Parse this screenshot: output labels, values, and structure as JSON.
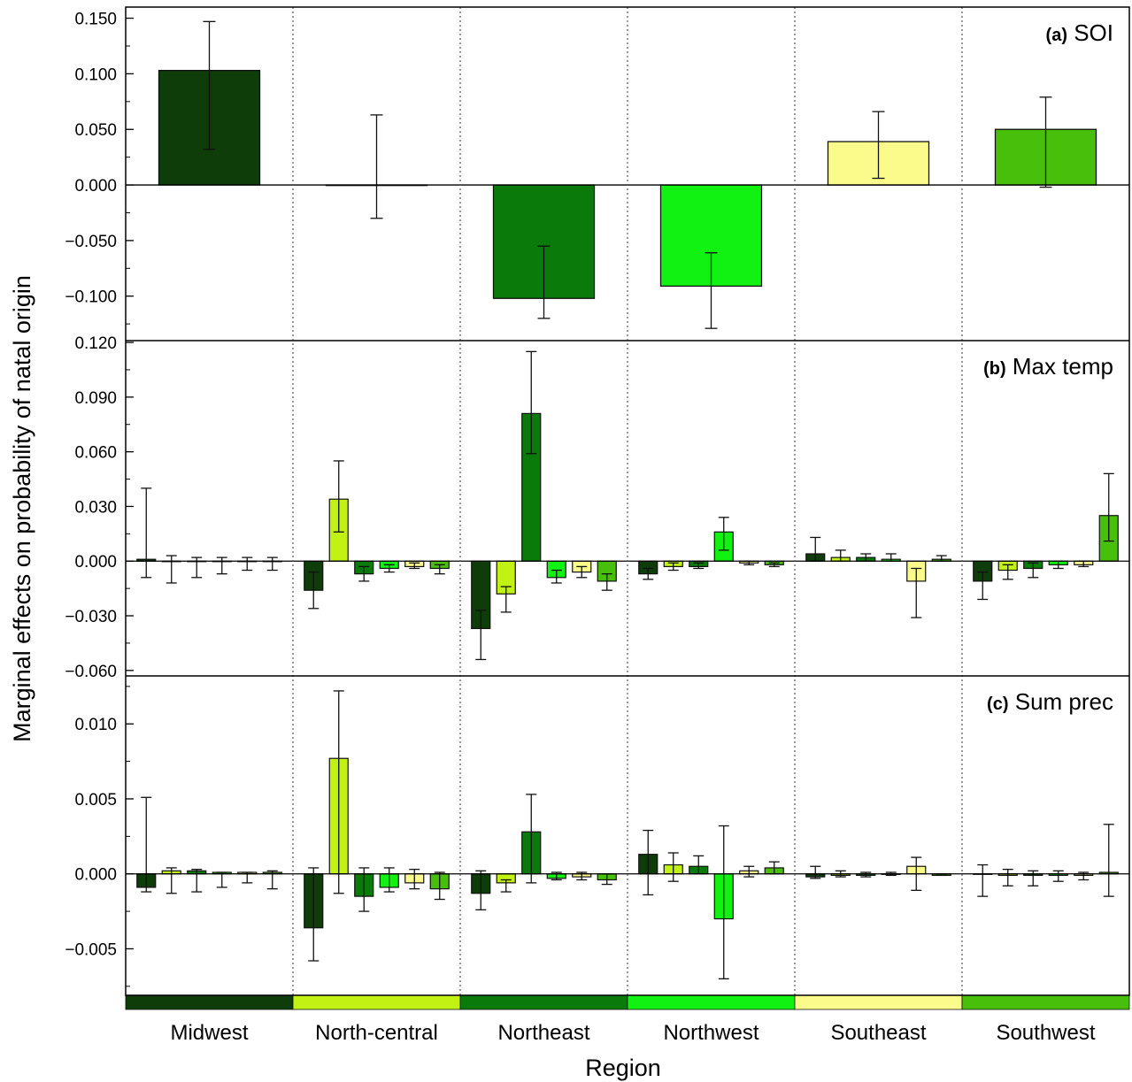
{
  "chart_data": {
    "type": "bar",
    "xlabel": "Region",
    "ylabel": "Marginal effects on probability of natal origin",
    "regions": [
      "Midwest",
      "North-central",
      "Northeast",
      "Northwest",
      "Southeast",
      "Southwest"
    ],
    "region_colors": [
      "#0e3d0a",
      "#c2f213",
      "#0a7a0a",
      "#12f212",
      "#fbfb8c",
      "#48bf0b"
    ],
    "grid": false,
    "error_bars": true,
    "panels": [
      {
        "letter": "(a)",
        "name": "SOI",
        "ylim": [
          -0.14,
          0.16
        ],
        "yticks": [
          0.15,
          0.1,
          0.05,
          0.0,
          -0.05,
          -0.1
        ],
        "ytick_labels": [
          "0.150",
          "0.100",
          "0.050",
          "0.000",
          "−0.050",
          "−0.100"
        ],
        "values": [
          0.103,
          0.0,
          -0.102,
          -0.091,
          0.039,
          0.05
        ],
        "err_low": [
          0.032,
          -0.03,
          -0.12,
          -0.129,
          0.006,
          -0.002
        ],
        "err_high": [
          0.147,
          0.063,
          -0.055,
          -0.061,
          0.066,
          0.079
        ]
      },
      {
        "letter": "(b)",
        "name": "Max temp",
        "ylim": [
          -0.063,
          0.121
        ],
        "yticks": [
          0.12,
          0.09,
          0.06,
          0.03,
          0.0,
          -0.03,
          -0.06
        ],
        "ytick_labels": [
          "0.120",
          "0.090",
          "0.060",
          "0.030",
          "0.000",
          "−0.030",
          "−0.060"
        ],
        "groups": [
          {
            "values": [
              0.001,
              0.0,
              0.0,
              0.0,
              0.0,
              0.0
            ],
            "err_low": [
              -0.009,
              -0.012,
              -0.009,
              -0.007,
              -0.005,
              -0.005
            ],
            "err_high": [
              0.04,
              0.003,
              0.002,
              0.002,
              0.002,
              0.002
            ]
          },
          {
            "values": [
              -0.016,
              0.034,
              -0.007,
              -0.004,
              -0.003,
              -0.004
            ],
            "err_low": [
              -0.026,
              0.016,
              -0.011,
              -0.006,
              -0.004,
              -0.007
            ],
            "err_high": [
              -0.006,
              0.055,
              -0.003,
              -0.002,
              -0.001,
              -0.002
            ]
          },
          {
            "values": [
              -0.037,
              -0.018,
              0.081,
              -0.009,
              -0.006,
              -0.011
            ],
            "err_low": [
              -0.054,
              -0.028,
              0.059,
              -0.012,
              -0.009,
              -0.016
            ],
            "err_high": [
              -0.027,
              -0.014,
              0.115,
              -0.005,
              -0.003,
              -0.007
            ]
          },
          {
            "values": [
              -0.007,
              -0.003,
              -0.003,
              0.016,
              -0.001,
              -0.002
            ],
            "err_low": [
              -0.01,
              -0.005,
              -0.004,
              0.006,
              -0.002,
              -0.003
            ],
            "err_high": [
              -0.004,
              -0.001,
              -0.001,
              0.024,
              0.0,
              -0.001
            ]
          },
          {
            "values": [
              0.004,
              0.002,
              0.002,
              0.001,
              -0.011,
              0.001
            ],
            "err_low": [
              0.0,
              0.0,
              0.0,
              0.0,
              -0.031,
              0.0
            ],
            "err_high": [
              0.013,
              0.006,
              0.004,
              0.004,
              -0.004,
              0.003
            ]
          },
          {
            "values": [
              -0.011,
              -0.005,
              -0.004,
              -0.002,
              -0.002,
              0.025
            ],
            "err_low": [
              -0.021,
              -0.01,
              -0.009,
              -0.004,
              -0.003,
              0.011
            ],
            "err_high": [
              -0.006,
              -0.002,
              -0.001,
              0.0,
              0.0,
              0.048
            ]
          }
        ]
      },
      {
        "letter": "(c)",
        "name": "Sum prec",
        "ylim": [
          -0.0081,
          0.0132
        ],
        "yticks": [
          0.01,
          0.005,
          0.0,
          -0.005
        ],
        "ytick_labels": [
          "0.010",
          "0.005",
          "0.000",
          "−0.005"
        ],
        "groups": [
          {
            "values": [
              -0.0009,
              0.0002,
              0.0002,
              0.0001,
              0.0001,
              0.0001
            ],
            "err_low": [
              -0.0012,
              -0.0013,
              -0.0012,
              -0.0009,
              -0.0006,
              -0.001
            ],
            "err_high": [
              0.0051,
              0.0004,
              0.0003,
              0.0001,
              0.0001,
              0.0002
            ]
          },
          {
            "values": [
              -0.0036,
              0.0077,
              -0.0015,
              -0.0009,
              -0.0006,
              -0.001
            ],
            "err_low": [
              -0.0058,
              -0.0013,
              -0.0025,
              -0.0012,
              -0.001,
              -0.0017
            ],
            "err_high": [
              0.0004,
              0.0122,
              0.0004,
              0.0004,
              0.0003,
              0.0001
            ]
          },
          {
            "values": [
              -0.0013,
              -0.0006,
              0.0028,
              -0.0003,
              -0.0002,
              -0.0004
            ],
            "err_low": [
              -0.0024,
              -0.0012,
              -0.0006,
              -0.0004,
              -0.0004,
              -0.0007
            ],
            "err_high": [
              0.0002,
              -0.0004,
              0.0053,
              0.0001,
              0.0001,
              0.0
            ]
          },
          {
            "values": [
              0.0013,
              0.0006,
              0.0005,
              -0.003,
              0.0002,
              0.0004
            ],
            "err_low": [
              -0.0014,
              -0.0005,
              0.0,
              -0.007,
              -0.0002,
              0.0
            ],
            "err_high": [
              0.0029,
              0.0014,
              0.0012,
              0.0032,
              0.0005,
              0.0008
            ]
          },
          {
            "values": [
              -0.0002,
              -0.0001,
              -0.0001,
              0.0,
              0.0005,
              -0.0001
            ],
            "err_low": [
              -0.0003,
              -0.0002,
              -0.0002,
              -0.0001,
              -0.0011,
              -0.0001
            ],
            "err_high": [
              0.0005,
              0.0002,
              0.0001,
              0.0001,
              0.0011,
              0.0
            ]
          },
          {
            "values": [
              0.0,
              -0.0001,
              -0.0001,
              -0.0001,
              -0.0001,
              0.0001
            ],
            "err_low": [
              -0.0015,
              -0.0008,
              -0.0008,
              -0.0005,
              -0.0004,
              -0.0015
            ],
            "err_high": [
              0.0006,
              0.0003,
              0.0002,
              0.0002,
              0.0001,
              0.0033
            ]
          }
        ]
      }
    ]
  }
}
